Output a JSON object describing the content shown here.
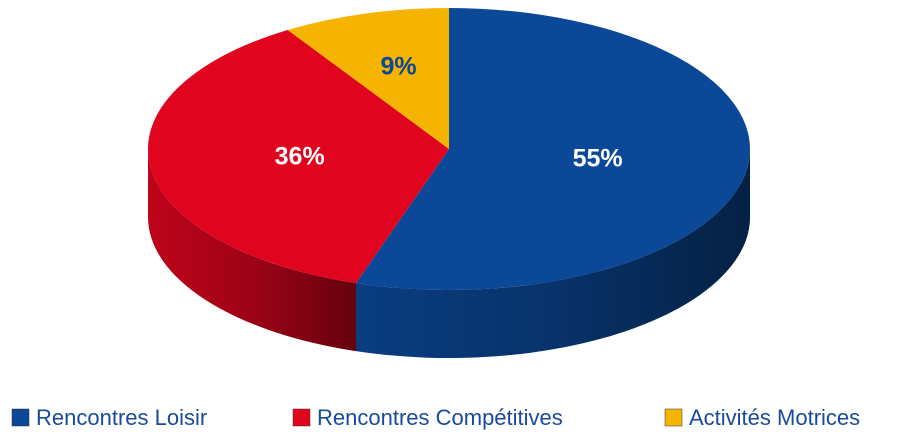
{
  "chart_data": {
    "type": "pie3d",
    "categories": [
      "Rencontres Loisir",
      "Rencontres Compétitives",
      "Activités Motrices"
    ],
    "values": [
      55,
      36,
      9
    ],
    "value_labels": [
      "55%",
      "36%",
      "9%"
    ],
    "colors": [
      "#0b4897",
      "#e0041f",
      "#f5b400"
    ],
    "label_colors": [
      "#ffffff",
      "#ffffff",
      "#0b4897"
    ],
    "legend": "bottom"
  }
}
